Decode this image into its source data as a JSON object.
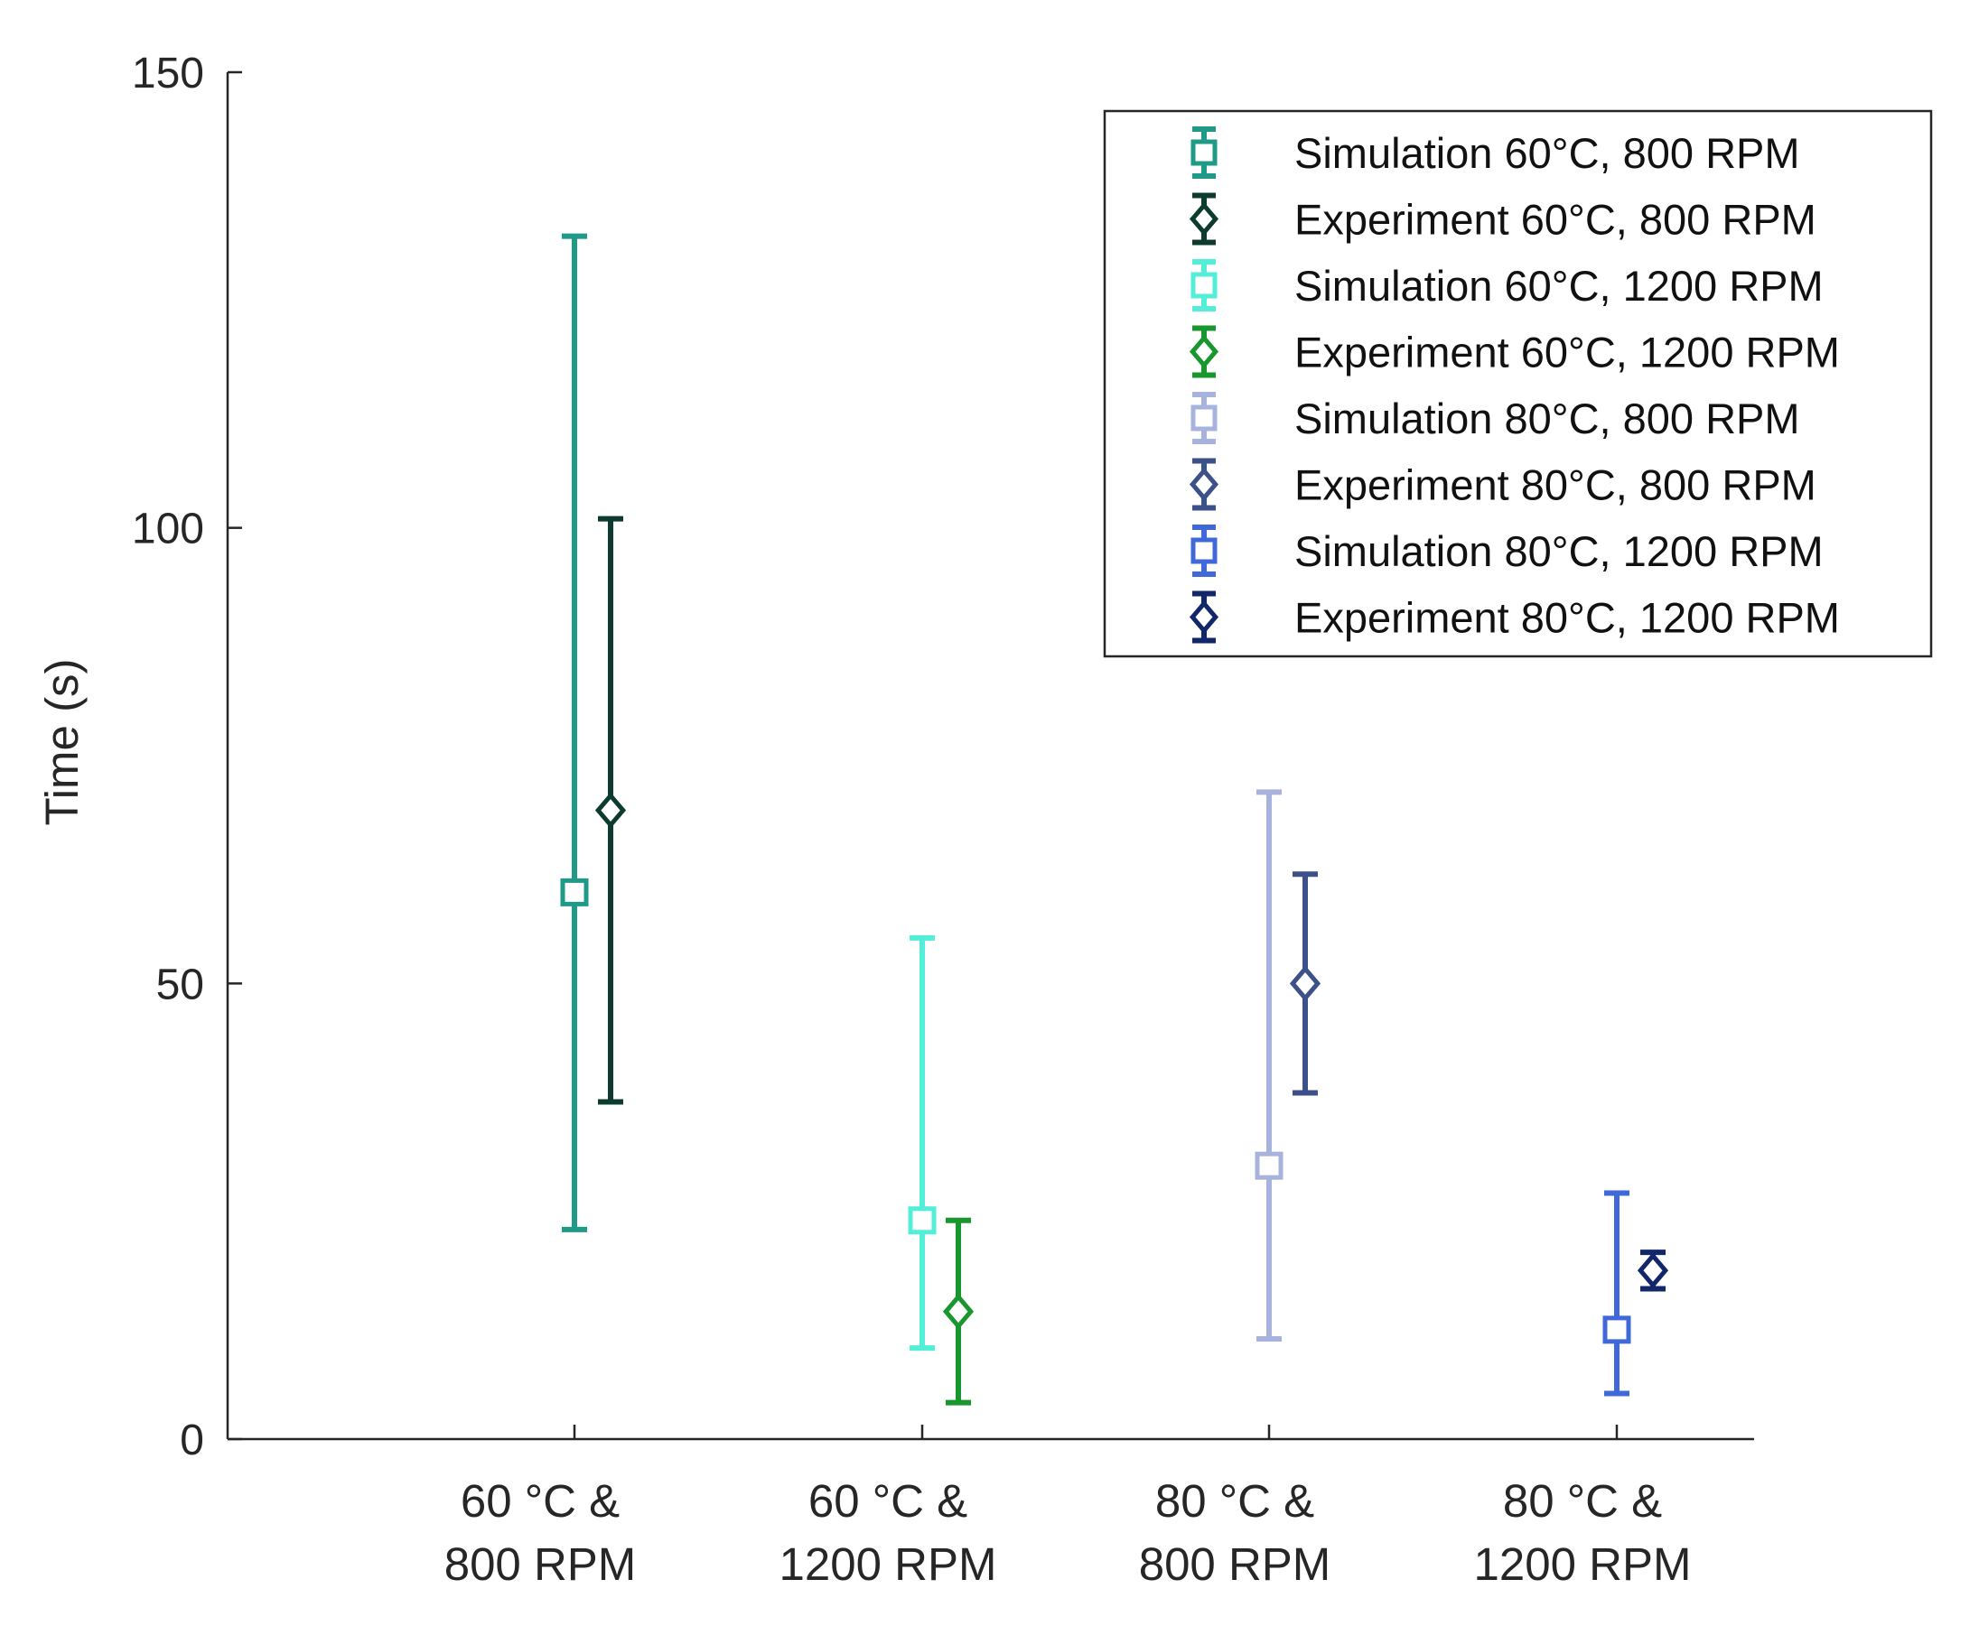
{
  "chart_data": {
    "type": "errorbar",
    "title": "",
    "xlabel": "",
    "ylabel": "Time (s)",
    "ylim": [
      0,
      150
    ],
    "yticks": [
      "0",
      "50",
      "100",
      "150"
    ],
    "categories": [
      [
        "60 °C &",
        "800 RPM"
      ],
      [
        "60 °C &",
        "1200 RPM"
      ],
      [
        "80 °C &",
        "800 RPM"
      ],
      [
        "80 °C &",
        "1200 RPM"
      ]
    ],
    "legend_position": "top-right",
    "series": [
      {
        "name": "Simulation 60°C, 800 RPM",
        "category": 0,
        "kind": "simulation",
        "marker": "square",
        "color": "#1f9a86",
        "value": 60,
        "low": 23,
        "high": 132
      },
      {
        "name": "Experiment 60°C, 800 RPM",
        "category": 0,
        "kind": "experiment",
        "marker": "diamond",
        "color": "#0e3b30",
        "value": 69,
        "low": 37,
        "high": 101
      },
      {
        "name": "Simulation 60°C, 1200 RPM",
        "category": 1,
        "kind": "simulation",
        "marker": "square",
        "color": "#52eed8",
        "value": 24,
        "low": 10,
        "high": 55
      },
      {
        "name": "Experiment 60°C, 1200 RPM",
        "category": 1,
        "kind": "experiment",
        "marker": "diamond",
        "color": "#17972d",
        "value": 14,
        "low": 4,
        "high": 24
      },
      {
        "name": "Simulation 80°C, 800 RPM",
        "category": 2,
        "kind": "simulation",
        "marker": "square",
        "color": "#a7b3dc",
        "value": 30,
        "low": 11,
        "high": 71
      },
      {
        "name": "Experiment 80°C, 800 RPM",
        "category": 2,
        "kind": "experiment",
        "marker": "diamond",
        "color": "#3c5089",
        "value": 50,
        "low": 38,
        "high": 62
      },
      {
        "name": "Simulation 80°C, 1200 RPM",
        "category": 3,
        "kind": "simulation",
        "marker": "square",
        "color": "#3f68d8",
        "value": 12,
        "low": 5,
        "high": 27
      },
      {
        "name": "Experiment 80°C, 1200 RPM",
        "category": 3,
        "kind": "experiment",
        "marker": "diamond",
        "color": "#12266a",
        "value": 18.5,
        "low": 16.5,
        "high": 20.5
      }
    ]
  }
}
